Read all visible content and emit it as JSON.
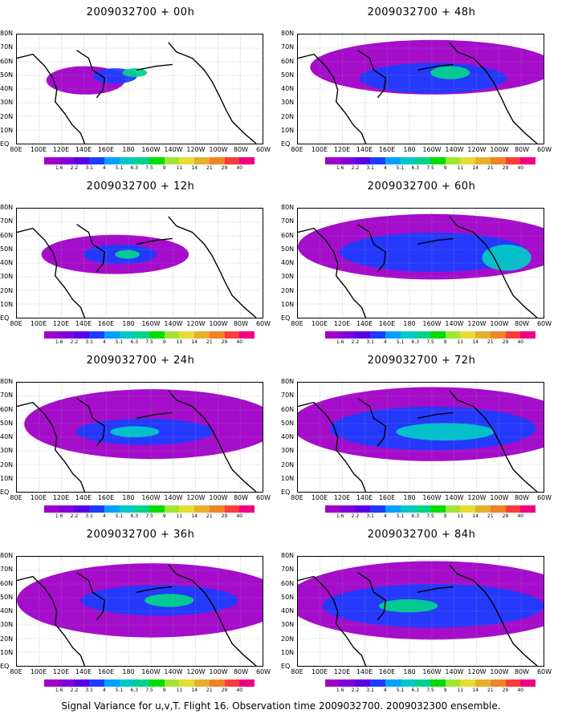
{
  "panels": [
    {
      "title": "2009032700 + 00h",
      "col": 0,
      "row": 0
    },
    {
      "title": "2009032700 + 48h",
      "col": 1,
      "row": 0
    },
    {
      "title": "2009032700 + 12h",
      "col": 0,
      "row": 1
    },
    {
      "title": "2009032700 + 60h",
      "col": 1,
      "row": 1
    },
    {
      "title": "2009032700 + 24h",
      "col": 0,
      "row": 2
    },
    {
      "title": "2009032700 + 72h",
      "col": 1,
      "row": 2
    },
    {
      "title": "2009032700 + 36h",
      "col": 0,
      "row": 3
    },
    {
      "title": "2009032700 + 84h",
      "col": 1,
      "row": 3
    }
  ],
  "lat_labels": [
    "80N",
    "70N",
    "60N",
    "50N",
    "40N",
    "30N",
    "20N",
    "10N",
    "EQ"
  ],
  "lon_labels": [
    "80E",
    "100E",
    "120E",
    "140E",
    "160E",
    "180",
    "160W",
    "140W",
    "120W",
    "100W",
    "80W",
    "60W"
  ],
  "colorbar": {
    "labels": [
      "1.6",
      "2.2",
      "3.1",
      "4",
      "5.1",
      "6.3",
      "7.5",
      "9",
      "11",
      "14",
      "21",
      "29",
      "40"
    ],
    "colors": [
      "#a000c8",
      "#8200dc",
      "#5a00e6",
      "#1e3cff",
      "#00a0ff",
      "#00c8c8",
      "#00d28c",
      "#00dc00",
      "#a0e632",
      "#e6dc32",
      "#e6af2d",
      "#f08228",
      "#fa3c3c",
      "#f00082"
    ]
  },
  "caption": "Signal Variance for u,v,T. Flight 16. Observation time 2009032700. 2009032300 ensemble."
}
